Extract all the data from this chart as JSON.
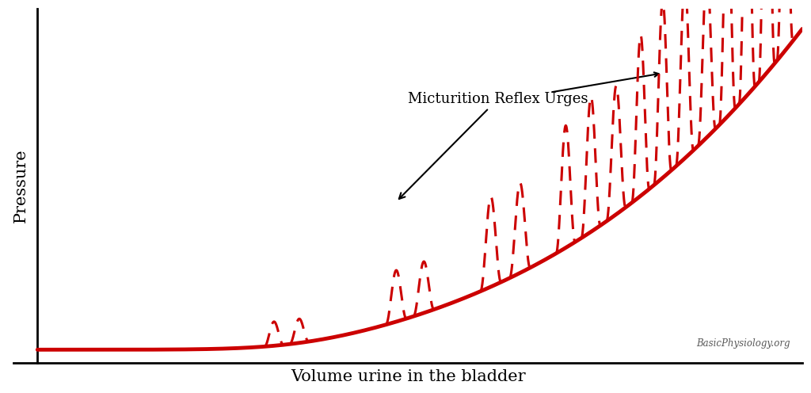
{
  "xlabel": "Volume urine in the bladder",
  "ylabel": "Pressure",
  "annotation_text": "Micturition Reflex Urges",
  "watermark": "BasicPhysiology.org",
  "line_color": "#CC0000",
  "background_color": "#ffffff",
  "xlim": [
    0,
    10
  ],
  "ylim": [
    0,
    1.1
  ]
}
